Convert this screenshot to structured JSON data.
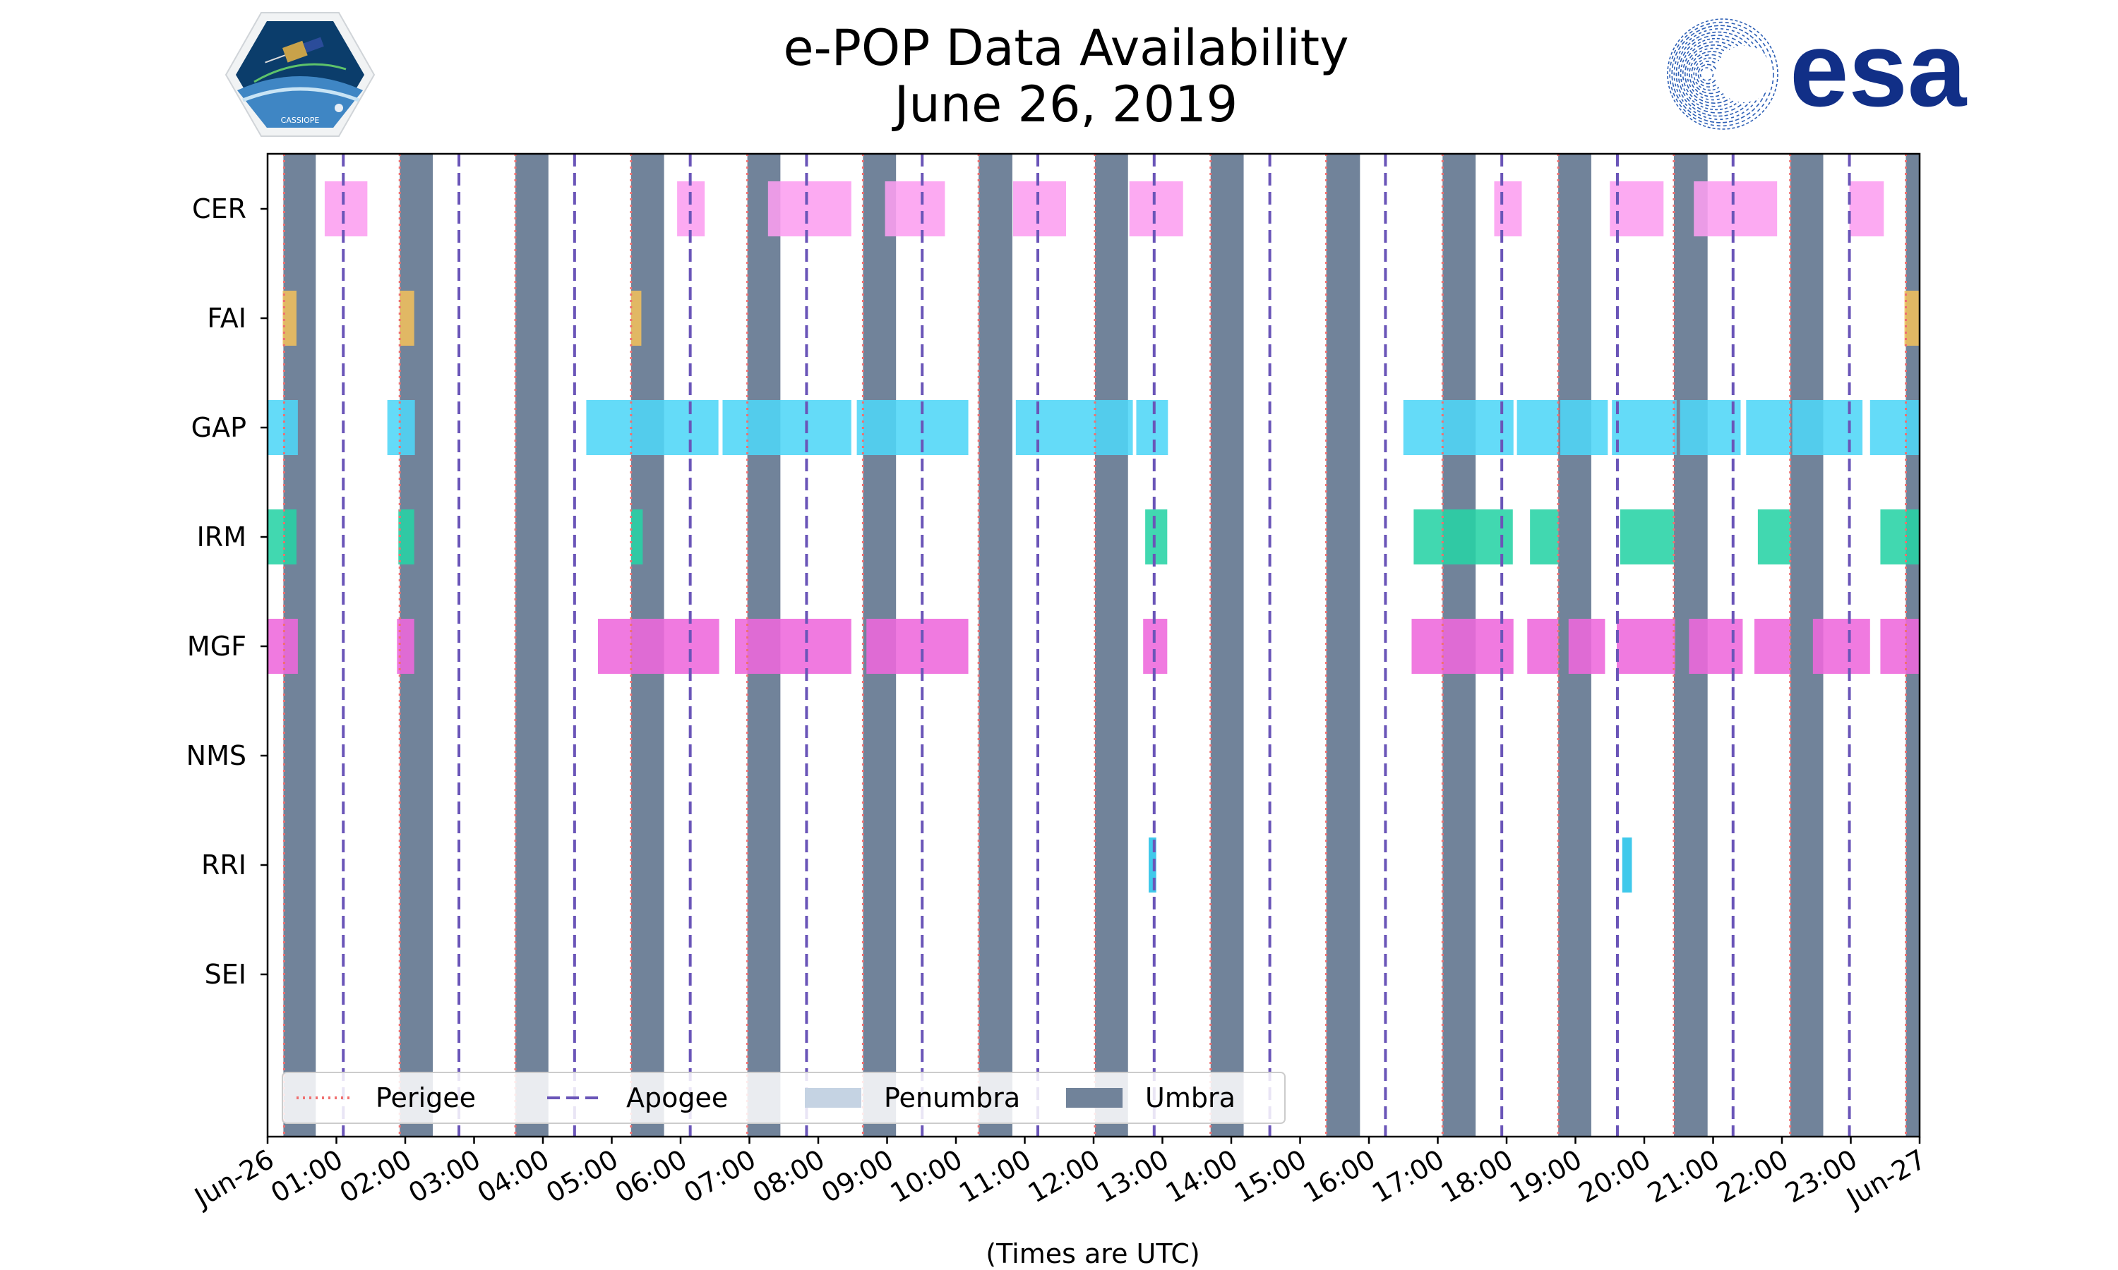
{
  "chart_data": {
    "type": "timeline",
    "title": "e-POP Data Availability",
    "subtitle": "June 26, 2019",
    "xlabel": "(Times are UTC)",
    "xlim_hours": [
      0,
      24
    ],
    "x_ticks": [
      {
        "hour": 0,
        "label": "Jun-26"
      },
      {
        "hour": 1,
        "label": "01:00"
      },
      {
        "hour": 2,
        "label": "02:00"
      },
      {
        "hour": 3,
        "label": "03:00"
      },
      {
        "hour": 4,
        "label": "04:00"
      },
      {
        "hour": 5,
        "label": "05:00"
      },
      {
        "hour": 6,
        "label": "06:00"
      },
      {
        "hour": 7,
        "label": "07:00"
      },
      {
        "hour": 8,
        "label": "08:00"
      },
      {
        "hour": 9,
        "label": "09:00"
      },
      {
        "hour": 10,
        "label": "10:00"
      },
      {
        "hour": 11,
        "label": "11:00"
      },
      {
        "hour": 12,
        "label": "12:00"
      },
      {
        "hour": 13,
        "label": "13:00"
      },
      {
        "hour": 14,
        "label": "14:00"
      },
      {
        "hour": 15,
        "label": "15:00"
      },
      {
        "hour": 16,
        "label": "16:00"
      },
      {
        "hour": 17,
        "label": "17:00"
      },
      {
        "hour": 18,
        "label": "18:00"
      },
      {
        "hour": 19,
        "label": "19:00"
      },
      {
        "hour": 20,
        "label": "20:00"
      },
      {
        "hour": 21,
        "label": "21:00"
      },
      {
        "hour": 22,
        "label": "22:00"
      },
      {
        "hour": 23,
        "label": "23:00"
      },
      {
        "hour": 24,
        "label": "Jun-27"
      }
    ],
    "instruments": [
      "CER",
      "FAI",
      "GAP",
      "IRM",
      "MGF",
      "NMS",
      "RRI",
      "SEI"
    ],
    "colors": {
      "CER": "#fc9ef0",
      "FAI": "#f0bf5c",
      "GAP": "#4fd6f7",
      "IRM": "#27d3a5",
      "MGF": "#ee68dc",
      "RRI": "#24c2e8",
      "umbra": "#71839a",
      "penumbra": "#c5d3e3",
      "perigee": "#f07070",
      "apogee": "#6a55b8"
    },
    "umbra_intervals": [
      [
        0.23,
        0.7
      ],
      [
        1.92,
        2.4
      ],
      [
        3.6,
        4.08
      ],
      [
        5.28,
        5.76
      ],
      [
        6.97,
        7.45
      ],
      [
        8.65,
        9.13
      ],
      [
        10.33,
        10.82
      ],
      [
        12.02,
        12.5
      ],
      [
        13.7,
        14.18
      ],
      [
        15.38,
        15.87
      ],
      [
        17.07,
        17.55
      ],
      [
        18.75,
        19.23
      ],
      [
        20.43,
        20.92
      ],
      [
        22.12,
        22.6
      ],
      [
        23.8,
        24.0
      ]
    ],
    "perigee_hours": [
      0.24,
      1.92,
      3.6,
      5.28,
      6.97,
      8.65,
      10.33,
      12.02,
      13.7,
      15.38,
      17.07,
      18.75,
      20.43,
      22.12,
      23.8
    ],
    "apogee_hours": [
      1.1,
      2.78,
      4.46,
      6.14,
      7.83,
      9.51,
      11.19,
      12.88,
      14.56,
      16.24,
      17.93,
      19.61,
      21.29,
      22.98
    ],
    "availability": {
      "CER": [
        [
          0.83,
          1.45
        ],
        [
          5.95,
          6.35
        ],
        [
          7.27,
          8.48
        ],
        [
          8.97,
          9.84
        ],
        [
          10.83,
          11.6
        ],
        [
          12.52,
          13.3
        ],
        [
          17.82,
          18.22
        ],
        [
          19.5,
          20.28
        ],
        [
          20.72,
          21.93
        ],
        [
          22.98,
          23.48
        ]
      ],
      "FAI": [
        [
          0.22,
          0.42
        ],
        [
          1.92,
          2.13
        ],
        [
          5.28,
          5.43
        ],
        [
          23.78,
          24.0
        ]
      ],
      "GAP": [
        [
          0.0,
          0.44
        ],
        [
          1.74,
          2.14
        ],
        [
          4.63,
          6.55
        ],
        [
          6.61,
          8.48
        ],
        [
          8.56,
          10.18
        ],
        [
          10.87,
          12.57
        ],
        [
          12.62,
          13.08
        ],
        [
          16.5,
          18.1
        ],
        [
          18.15,
          18.75
        ],
        [
          18.78,
          19.47
        ],
        [
          19.53,
          20.47
        ],
        [
          20.52,
          21.4
        ],
        [
          21.48,
          22.12
        ],
        [
          22.15,
          23.17
        ],
        [
          23.28,
          24.0
        ]
      ],
      "IRM": [
        [
          0.0,
          0.42
        ],
        [
          1.9,
          2.13
        ],
        [
          5.28,
          5.45
        ],
        [
          12.75,
          13.07
        ],
        [
          16.65,
          18.09
        ],
        [
          18.34,
          18.75
        ],
        [
          19.65,
          20.43
        ],
        [
          21.65,
          22.12
        ],
        [
          23.43,
          24.0
        ]
      ],
      "MGF": [
        [
          0.0,
          0.44
        ],
        [
          1.88,
          2.13
        ],
        [
          4.8,
          6.56
        ],
        [
          6.79,
          8.48
        ],
        [
          8.7,
          10.18
        ],
        [
          12.72,
          13.07
        ],
        [
          16.62,
          18.1
        ],
        [
          18.3,
          18.75
        ],
        [
          18.9,
          19.43
        ],
        [
          19.6,
          20.45
        ],
        [
          20.65,
          21.43
        ],
        [
          21.6,
          22.12
        ],
        [
          22.45,
          23.28
        ],
        [
          23.43,
          24.0
        ]
      ],
      "NMS": [],
      "RRI": [
        [
          12.8,
          12.91
        ],
        [
          19.68,
          19.82
        ]
      ],
      "SEI": []
    },
    "legend": {
      "position": "lower-left",
      "entries": [
        {
          "label": "Perigee",
          "style": "dotted",
          "color_key": "perigee"
        },
        {
          "label": "Apogee",
          "style": "dashed",
          "color_key": "apogee"
        },
        {
          "label": "Penumbra",
          "style": "patch",
          "color_key": "penumbra"
        },
        {
          "label": "Umbra",
          "style": "patch",
          "color_key": "umbra"
        }
      ]
    }
  },
  "logos": {
    "left_logo_text": "CASSIOPE",
    "right_logo_text": "esa"
  }
}
